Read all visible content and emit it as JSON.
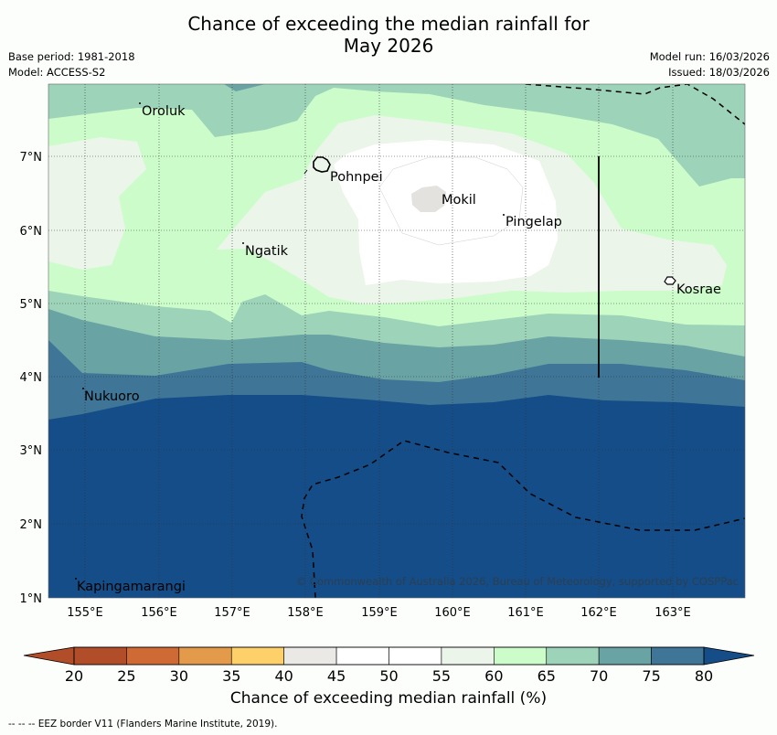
{
  "title": {
    "line1": "Chance of exceeding the median rainfall for",
    "line2": "May 2026"
  },
  "meta": {
    "base_period": "Base period: 1981-2018",
    "model": "Model: ACCESS-S2",
    "model_run": "Model run: 16/03/2026",
    "issued": "Issued: 18/03/2026"
  },
  "map": {
    "x_ticks": [
      "155°E",
      "156°E",
      "157°E",
      "158°E",
      "159°E",
      "160°E",
      "161°E",
      "162°E",
      "163°E"
    ],
    "y_ticks": [
      "7°N",
      "6°N",
      "5°N",
      "4°N",
      "3°N",
      "2°N",
      "1°N"
    ],
    "places": [
      "Oroluk",
      "Pohnpei",
      "Mokil",
      "Pingelap",
      "Ngatik",
      "Kosrae",
      "Nukuoro",
      "Kapingamarangi"
    ],
    "copyright": "© Commonwealth of Australia 2026, Bureau of Meteorology, supported by COSPPac"
  },
  "colorbar": {
    "ticks": [
      "20",
      "25",
      "30",
      "35",
      "40",
      "45",
      "50",
      "55",
      "60",
      "65",
      "70",
      "75",
      "80"
    ],
    "colors": [
      "#b24d2a",
      "#cf6a35",
      "#e39b4b",
      "#fed06a",
      "#ebe9e6",
      "#ffffff",
      "#ffffff",
      "#ebf5ea",
      "#ccfcca",
      "#9dd3b8",
      "#6aa3a4",
      "#3f7597",
      "#144d87"
    ],
    "label": "Chance of exceeding median rainfall (%)"
  },
  "footer": "--  --  -- EEZ border V11 (Flanders Marine Institute, 2019)."
}
